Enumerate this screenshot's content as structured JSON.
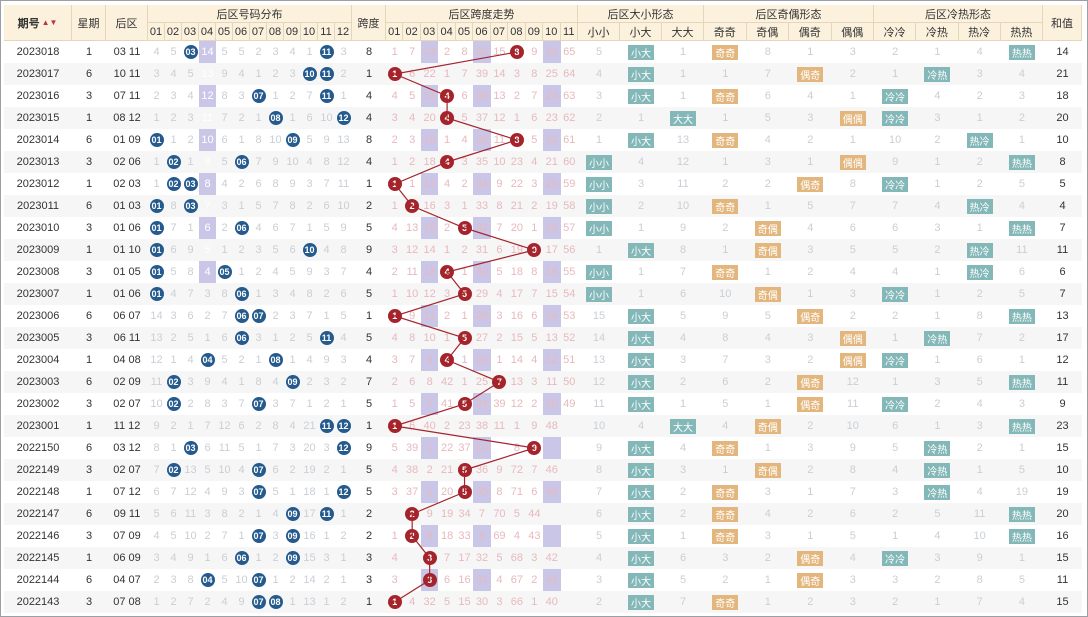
{
  "headers": {
    "period": "期号",
    "weekday": "星期",
    "back_zone": "后区",
    "number_dist": "后区号码分布",
    "span": "跨度",
    "span_trend": "后区跨度走势",
    "size_form": "后区大小形态",
    "oddeven_form": "后区奇偶形态",
    "hotcold_form": "后区冷热形态",
    "sum": "和值"
  },
  "sub_headers": {
    "numbers": [
      "01",
      "02",
      "03",
      "04",
      "05",
      "06",
      "07",
      "08",
      "09",
      "10",
      "11",
      "12"
    ],
    "spans": [
      "01",
      "02",
      "03",
      "04",
      "05",
      "06",
      "07",
      "08",
      "09",
      "10",
      "11"
    ],
    "size": [
      "小小",
      "小大",
      "大大"
    ],
    "oddeven": [
      "奇奇",
      "奇偶",
      "偶奇",
      "偶偶"
    ],
    "hotcold": [
      "冷冷",
      "冷热",
      "热冷",
      "热热"
    ]
  },
  "colors": {
    "header_bg": "#fbf1dd",
    "ball_blue": "#245a8d",
    "ball_red": "#a5242c",
    "pill_teal": "#84b8b8",
    "pill_gold": "#e3b67e",
    "fill_purple": "#9f98d5"
  },
  "rows": [
    {
      "p": "2023018",
      "w": "1",
      "b": "03 11",
      "nums": [
        "4",
        "5",
        "B",
        "14",
        "5",
        "5",
        "2",
        "3",
        "4",
        "1",
        "B",
        "3"
      ],
      "span": "8",
      "spv": [
        "1",
        "7",
        "23",
        "2",
        "8",
        "40",
        "15",
        "",
        "9",
        "26",
        "65"
      ],
      "size": [
        "5",
        "",
        "1"
      ],
      "oe": [
        "",
        "8",
        "1",
        "3"
      ],
      "hc": [
        "2",
        "1",
        "4",
        ""
      ],
      "sum": "14"
    },
    {
      "p": "2023017",
      "w": "6",
      "b": "10 11",
      "nums": [
        "3",
        "4",
        "5",
        "13",
        "9",
        "4",
        "1",
        "2",
        "3",
        "B",
        "B",
        "2"
      ],
      "span": "1",
      "spv": [
        "",
        "6",
        "22",
        "1",
        "7",
        "39",
        "14",
        "3",
        "8",
        "25",
        "64"
      ],
      "size": [
        "4",
        "",
        "1"
      ],
      "oe": [
        "1",
        "7",
        "",
        "2"
      ],
      "hc": [
        "1",
        "",
        "3",
        "4"
      ],
      "sum": "21"
    },
    {
      "p": "2023016",
      "w": "3",
      "b": "07 11",
      "nums": [
        "2",
        "3",
        "4",
        "12",
        "8",
        "3",
        "B",
        "1",
        "2",
        "7",
        "B",
        "1"
      ],
      "span": "4",
      "spv": [
        "4",
        "5",
        "21",
        "",
        "6",
        "38",
        "13",
        "2",
        "7",
        "24",
        "63"
      ],
      "size": [
        "3",
        "",
        "1"
      ],
      "oe": [
        "",
        "6",
        "4",
        "1"
      ],
      "hc": [
        "",
        "4",
        "2",
        "3"
      ],
      "sum": "18"
    },
    {
      "p": "2023015",
      "w": "1",
      "b": "08 12",
      "nums": [
        "1",
        "2",
        "3",
        "11",
        "7",
        "2",
        "1",
        "B",
        "1",
        "6",
        "10",
        "B"
      ],
      "span": "4",
      "spv": [
        "3",
        "4",
        "20",
        "",
        "5",
        "37",
        "12",
        "1",
        "6",
        "23",
        "62"
      ],
      "size": [
        "2",
        "1",
        ""
      ],
      "oe": [
        "1",
        "5",
        "3",
        ""
      ],
      "hc": [
        "",
        "3",
        "1",
        "2"
      ],
      "sum": "20"
    },
    {
      "p": "2023014",
      "w": "6",
      "b": "01 09",
      "nums": [
        "B",
        "1",
        "2",
        "10",
        "6",
        "1",
        "8",
        "10",
        "B",
        "5",
        "9",
        "13"
      ],
      "span": "8",
      "spv": [
        "2",
        "3",
        "19",
        "1",
        "4",
        "36",
        "11",
        "",
        "5",
        "22",
        "61"
      ],
      "size": [
        "1",
        "",
        "13"
      ],
      "oe": [
        "",
        "4",
        "2",
        "1"
      ],
      "hc": [
        "10",
        "2",
        "",
        "1"
      ],
      "sum": "10"
    },
    {
      "p": "2023013",
      "w": "3",
      "b": "02 06",
      "nums": [
        "1",
        "B",
        "1",
        "9",
        "5",
        "B",
        "7",
        "9",
        "10",
        "4",
        "8",
        "12"
      ],
      "span": "4",
      "spv": [
        "1",
        "2",
        "18",
        "",
        "3",
        "35",
        "10",
        "23",
        "4",
        "21",
        "60"
      ],
      "size": [
        "",
        "4",
        "12"
      ],
      "oe": [
        "1",
        "3",
        "1",
        ""
      ],
      "hc": [
        "9",
        "1",
        "2",
        ""
      ],
      "sum": "8"
    },
    {
      "p": "2023012",
      "w": "1",
      "b": "02 03",
      "nums": [
        "1",
        "B",
        "B",
        "8",
        "4",
        "2",
        "6",
        "8",
        "9",
        "3",
        "7",
        "11"
      ],
      "span": "1",
      "spv": [
        "",
        "1",
        "17",
        "4",
        "2",
        "34",
        "9",
        "22",
        "3",
        "20",
        "59"
      ],
      "size": [
        "",
        "3",
        "11"
      ],
      "oe": [
        "2",
        "2",
        "",
        "8"
      ],
      "hc": [
        "",
        "1",
        "2",
        "5"
      ],
      "sum": "5"
    },
    {
      "p": "2023011",
      "w": "6",
      "b": "01 03",
      "nums": [
        "B",
        "8",
        "B",
        "7",
        "3",
        "1",
        "5",
        "7",
        "8",
        "2",
        "6",
        "10"
      ],
      "span": "2",
      "spv": [
        "1",
        "",
        "16",
        "3",
        "1",
        "33",
        "8",
        "21",
        "2",
        "19",
        "58"
      ],
      "size": [
        "",
        "2",
        "10"
      ],
      "oe": [
        "",
        "1",
        "5",
        "7"
      ],
      "hc": [
        "7",
        "4",
        "",
        "4"
      ],
      "sum": "4"
    },
    {
      "p": "2023010",
      "w": "3",
      "b": "01 06",
      "nums": [
        "B",
        "7",
        "1",
        "6",
        "2",
        "B",
        "4",
        "6",
        "7",
        "1",
        "5",
        "9"
      ],
      "span": "5",
      "spv": [
        "4",
        "13",
        "15",
        "2",
        "",
        "32",
        "7",
        "20",
        "1",
        "18",
        "57"
      ],
      "size": [
        "",
        "1",
        "9"
      ],
      "oe": [
        "2",
        "",
        "4",
        "6"
      ],
      "hc": [
        "6",
        "3",
        "1",
        ""
      ],
      "sum": "7"
    },
    {
      "p": "2023009",
      "w": "1",
      "b": "01 10",
      "nums": [
        "B",
        "6",
        "9",
        "5",
        "1",
        "2",
        "3",
        "5",
        "6",
        "B",
        "4",
        "8"
      ],
      "span": "9",
      "spv": [
        "3",
        "12",
        "14",
        "1",
        "2",
        "31",
        "6",
        "19",
        "",
        "17",
        "56"
      ],
      "size": [
        "1",
        "",
        "8"
      ],
      "oe": [
        "1",
        "",
        "3",
        "5"
      ],
      "hc": [
        "5",
        "2",
        "",
        "11"
      ],
      "sum": "11"
    },
    {
      "p": "2023008",
      "w": "3",
      "b": "01 05",
      "nums": [
        "B",
        "5",
        "8",
        "4",
        "B",
        "1",
        "2",
        "4",
        "5",
        "9",
        "3",
        "7"
      ],
      "span": "4",
      "spv": [
        "2",
        "11",
        "13",
        "",
        "1",
        "30",
        "5",
        "18",
        "8",
        "16",
        "55"
      ],
      "size": [
        "",
        "1",
        "7"
      ],
      "oe": [
        "",
        "1",
        "2",
        "4"
      ],
      "hc": [
        "4",
        "1",
        "",
        "6"
      ],
      "sum": "6"
    },
    {
      "p": "2023007",
      "w": "1",
      "b": "01 06",
      "nums": [
        "B",
        "4",
        "7",
        "3",
        "8",
        "B",
        "1",
        "3",
        "4",
        "8",
        "2",
        "6"
      ],
      "span": "5",
      "spv": [
        "1",
        "10",
        "12",
        "3",
        "",
        "29",
        "4",
        "17",
        "7",
        "15",
        "54"
      ],
      "size": [
        "",
        "1",
        "6"
      ],
      "oe": [
        "10",
        "",
        "1",
        "3"
      ],
      "hc": [
        "",
        "1",
        "2",
        "5"
      ],
      "sum": "7"
    },
    {
      "p": "2023006",
      "w": "6",
      "b": "06 07",
      "nums": [
        "14",
        "3",
        "6",
        "2",
        "7",
        "B",
        "B",
        "2",
        "3",
        "7",
        "1",
        "5"
      ],
      "span": "1",
      "spv": [
        "",
        "9",
        "11",
        "2",
        "1",
        "28",
        "3",
        "16",
        "6",
        "14",
        "53"
      ],
      "size": [
        "15",
        "",
        "5"
      ],
      "oe": [
        "9",
        "5",
        "",
        "2"
      ],
      "hc": [
        "2",
        "1",
        "8",
        ""
      ],
      "sum": "13"
    },
    {
      "p": "2023005",
      "w": "3",
      "b": "06 11",
      "nums": [
        "13",
        "2",
        "5",
        "1",
        "6",
        "B",
        "3",
        "1",
        "2",
        "5",
        "B",
        "4"
      ],
      "span": "5",
      "spv": [
        "4",
        "8",
        "10",
        "1",
        "",
        "27",
        "2",
        "15",
        "5",
        "13",
        "52"
      ],
      "size": [
        "14",
        "",
        "4"
      ],
      "oe": [
        "8",
        "4",
        "3",
        ""
      ],
      "hc": [
        "1",
        "",
        "7",
        "2"
      ],
      "sum": "17"
    },
    {
      "p": "2023004",
      "w": "1",
      "b": "04 08",
      "nums": [
        "12",
        "1",
        "4",
        "B",
        "5",
        "2",
        "1",
        "B",
        "1",
        "4",
        "9",
        "3"
      ],
      "span": "4",
      "spv": [
        "3",
        "7",
        "9",
        "",
        "1",
        "26",
        "1",
        "14",
        "4",
        "12",
        "51"
      ],
      "size": [
        "13",
        "",
        "3"
      ],
      "oe": [
        "7",
        "3",
        "2",
        ""
      ],
      "hc": [
        "",
        "1",
        "6",
        "1"
      ],
      "sum": "12"
    },
    {
      "p": "2023003",
      "w": "6",
      "b": "02 09",
      "nums": [
        "11",
        "B",
        "3",
        "9",
        "4",
        "1",
        "8",
        "4",
        "B",
        "2",
        "3",
        "2"
      ],
      "span": "7",
      "spv": [
        "2",
        "6",
        "8",
        "42",
        "1",
        "25",
        "",
        "13",
        "3",
        "11",
        "50"
      ],
      "size": [
        "12",
        "",
        "2"
      ],
      "oe": [
        "6",
        "2",
        "",
        "12"
      ],
      "hc": [
        "1",
        "3",
        "5",
        ""
      ],
      "sum": "11"
    },
    {
      "p": "2023002",
      "w": "3",
      "b": "02 07",
      "nums": [
        "10",
        "B",
        "2",
        "8",
        "3",
        "7",
        "B",
        "3",
        "7",
        "1",
        "2",
        "1"
      ],
      "span": "5",
      "spv": [
        "1",
        "5",
        "7",
        "41",
        "",
        "24",
        "39",
        "12",
        "2",
        "10",
        "49"
      ],
      "size": [
        "11",
        "",
        "1"
      ],
      "oe": [
        "5",
        "1",
        "",
        "11"
      ],
      "hc": [
        "",
        "2",
        "4",
        "3"
      ],
      "sum": "9"
    },
    {
      "p": "2023001",
      "w": "1",
      "b": "11 12",
      "nums": [
        "9",
        "2",
        "1",
        "7",
        "12",
        "6",
        "2",
        "8",
        "4",
        "21",
        "B",
        "B"
      ],
      "span": "1",
      "spv": [
        "",
        "6",
        "40",
        "2",
        "23",
        "38",
        "11",
        "1",
        "9",
        "48",
        ""
      ],
      "size": [
        "10",
        "4",
        ""
      ],
      "oe": [
        "4",
        "",
        "2",
        "10"
      ],
      "hc": [
        "6",
        "1",
        "3",
        ""
      ],
      "sum": "23"
    },
    {
      "p": "2022150",
      "w": "6",
      "b": "03 12",
      "nums": [
        "8",
        "1",
        "B",
        "6",
        "11",
        "5",
        "1",
        "7",
        "3",
        "20",
        "3",
        "B"
      ],
      "span": "9",
      "spv": [
        "5",
        "39",
        "1",
        "22",
        "37",
        "10",
        "",
        "8",
        "47",
        "",
        ""
      ],
      "size": [
        "9",
        "",
        "4"
      ],
      "oe": [
        "",
        "1",
        "3",
        "9"
      ],
      "hc": [
        "5",
        "",
        "2",
        "1"
      ],
      "sum": "15"
    },
    {
      "p": "2022149",
      "w": "3",
      "b": "02 07",
      "nums": [
        "7",
        "B",
        "13",
        "5",
        "10",
        "4",
        "B",
        "6",
        "2",
        "19",
        "2",
        "1"
      ],
      "span": "5",
      "spv": [
        "4",
        "38",
        "2",
        "21",
        "",
        "36",
        "9",
        "72",
        "7",
        "46",
        ""
      ],
      "size": [
        "8",
        "",
        "3"
      ],
      "oe": [
        "1",
        "",
        "2",
        "8"
      ],
      "hc": [
        "4",
        "",
        "1",
        "5"
      ],
      "sum": "10"
    },
    {
      "p": "2022148",
      "w": "1",
      "b": "07 12",
      "nums": [
        "6",
        "7",
        "12",
        "4",
        "9",
        "3",
        "B",
        "5",
        "1",
        "18",
        "1",
        "B"
      ],
      "span": "5",
      "spv": [
        "3",
        "37",
        "1",
        "20",
        "",
        "35",
        "8",
        "71",
        "6",
        "45",
        ""
      ],
      "size": [
        "7",
        "",
        "2"
      ],
      "oe": [
        "",
        "3",
        "1",
        "7"
      ],
      "hc": [
        "3",
        "",
        "4",
        "19"
      ],
      "sum": "19"
    },
    {
      "p": "2022147",
      "w": "6",
      "b": "09 11",
      "nums": [
        "5",
        "6",
        "11",
        "3",
        "8",
        "2",
        "1",
        "4",
        "B",
        "17",
        "B",
        "1"
      ],
      "span": "2",
      "spv": [
        "",
        "36",
        "9",
        "19",
        "34",
        "7",
        "70",
        "5",
        "44",
        "",
        ""
      ],
      "size": [
        "6",
        "",
        "2"
      ],
      "oe": [
        "",
        "4",
        "2",
        "6"
      ],
      "hc": [
        "2",
        "5",
        "11",
        ""
      ],
      "sum": "20"
    },
    {
      "p": "2022146",
      "w": "3",
      "b": "07 09",
      "nums": [
        "4",
        "5",
        "10",
        "2",
        "7",
        "1",
        "B",
        "3",
        "B",
        "16",
        "1",
        "2"
      ],
      "span": "2",
      "spv": [
        "1",
        "35",
        "8",
        "18",
        "33",
        "6",
        "69",
        "4",
        "43",
        "",
        ""
      ],
      "size": [
        "5",
        "",
        "1"
      ],
      "oe": [
        "",
        "3",
        "1",
        "5"
      ],
      "hc": [
        "1",
        "4",
        "10",
        ""
      ],
      "sum": "16"
    },
    {
      "p": "2022145",
      "w": "1",
      "b": "06 09",
      "nums": [
        "3",
        "4",
        "9",
        "1",
        "6",
        "B",
        "1",
        "2",
        "B",
        "15",
        "3",
        "1"
      ],
      "span": "3",
      "spv": [
        "4",
        "",
        "34",
        "7",
        "17",
        "32",
        "5",
        "68",
        "3",
        "42",
        ""
      ],
      "size": [
        "4",
        "",
        "6"
      ],
      "oe": [
        "3",
        "2",
        "",
        "4"
      ],
      "hc": [
        "",
        "3",
        "9",
        "1"
      ],
      "sum": "15"
    },
    {
      "p": "2022144",
      "w": "6",
      "b": "04 07",
      "nums": [
        "2",
        "3",
        "8",
        "B",
        "5",
        "10",
        "B",
        "1",
        "2",
        "14",
        "2",
        "1"
      ],
      "span": "3",
      "spv": [
        "3",
        "",
        "33",
        "6",
        "16",
        "31",
        "4",
        "67",
        "2",
        "41",
        ""
      ],
      "size": [
        "3",
        "",
        "5"
      ],
      "oe": [
        "2",
        "1",
        "",
        "3"
      ],
      "hc": [
        "3",
        "2",
        "8",
        "5"
      ],
      "sum": "11"
    },
    {
      "p": "2022143",
      "w": "3",
      "b": "07 08",
      "nums": [
        "1",
        "2",
        "7",
        "2",
        "4",
        "9",
        "B",
        "B",
        "1",
        "13",
        "1",
        "2"
      ],
      "span": "1",
      "spv": [
        "",
        "4",
        "32",
        "5",
        "15",
        "30",
        "3",
        "66",
        "1",
        "40",
        ""
      ],
      "size": [
        "2",
        "",
        "7"
      ],
      "oe": [
        "",
        "1",
        "2",
        "3"
      ],
      "hc": [
        "2",
        "1",
        "7",
        "4"
      ],
      "sum": "15"
    }
  ]
}
